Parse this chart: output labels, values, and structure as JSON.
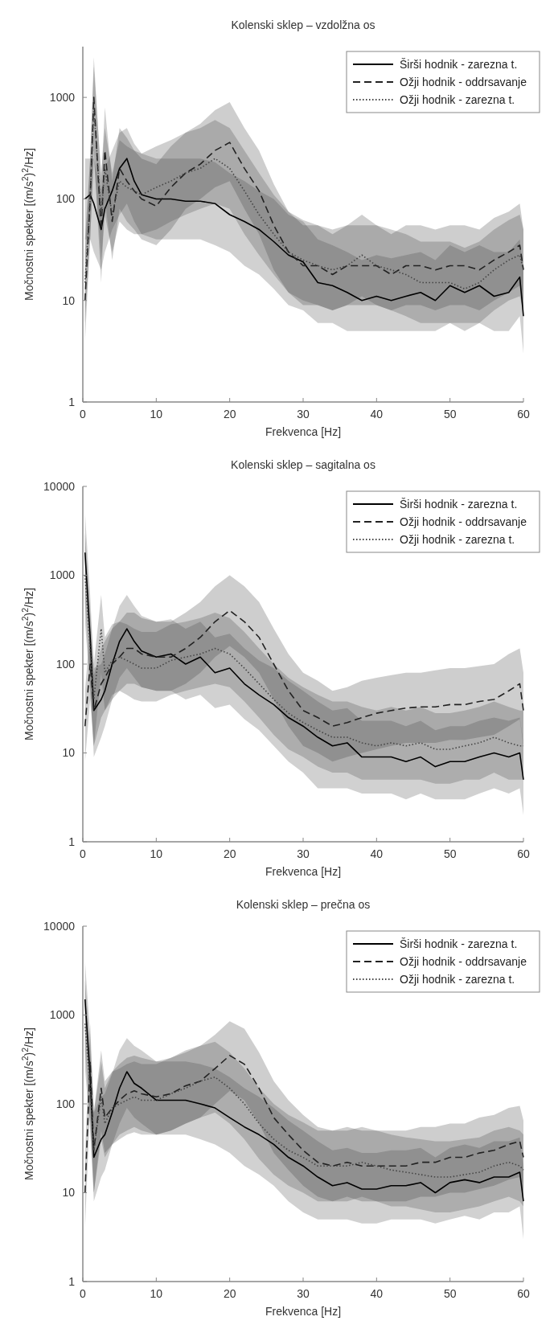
{
  "chart_data": [
    {
      "type": "line",
      "title": "Kolenski sklep – vzdolžna os",
      "xlabel": "Frekvenca [Hz]",
      "ylabel": "Močnostni spekter [(m/s$^{2}$)$^{2}$/Hz]",
      "log": "y",
      "legend": "top right",
      "xlim": [
        0,
        60
      ],
      "xticks": [
        0,
        10,
        20,
        30,
        40,
        50,
        60
      ],
      "ylim": [
        1,
        3162
      ],
      "yticks": [
        1,
        10,
        100,
        1000
      ],
      "x": [
        0.3,
        1,
        1.5,
        2.5,
        3,
        4,
        5,
        6,
        7,
        8,
        10,
        12,
        14,
        16,
        18,
        20,
        22,
        24,
        26,
        28,
        30,
        32,
        34,
        36,
        38,
        40,
        42,
        44,
        46,
        48,
        50,
        52,
        54,
        56,
        58,
        59.5,
        60
      ],
      "series": [
        {
          "name": "Širši hodnik - zarezna t.",
          "color": "#000000",
          "line_style": "solid",
          "values": [
            100,
            110,
            90,
            50,
            80,
            120,
            200,
            250,
            150,
            110,
            100,
            100,
            95,
            95,
            90,
            70,
            60,
            50,
            38,
            28,
            24,
            15,
            14,
            12,
            10,
            11,
            10,
            11,
            12,
            10,
            14,
            12,
            14,
            11,
            12,
            17,
            7
          ],
          "lower": [
            40,
            40,
            30,
            20,
            30,
            50,
            70,
            90,
            60,
            45,
            40,
            40,
            40,
            40,
            35,
            30,
            22,
            18,
            13,
            9,
            8,
            6,
            6,
            5,
            5,
            5,
            5,
            5,
            5,
            5,
            6,
            6,
            6,
            5,
            5,
            7,
            3
          ],
          "upper": [
            250,
            250,
            250,
            120,
            200,
            300,
            450,
            500,
            350,
            280,
            250,
            250,
            250,
            250,
            230,
            180,
            150,
            120,
            100,
            70,
            60,
            40,
            35,
            30,
            25,
            28,
            26,
            28,
            30,
            25,
            35,
            30,
            35,
            30,
            30,
            40,
            20
          ]
        },
        {
          "name": "Ožji hodnik - oddrsavanje",
          "color": "#222222",
          "line_style": "dashed",
          "values": [
            10,
            100,
            1000,
            50,
            300,
            60,
            200,
            150,
            120,
            100,
            85,
            130,
            180,
            220,
            300,
            360,
            200,
            120,
            55,
            30,
            22,
            22,
            18,
            22,
            22,
            22,
            18,
            22,
            22,
            20,
            22,
            22,
            20,
            25,
            30,
            35,
            20
          ],
          "lower": [
            4,
            40,
            300,
            15,
            100,
            25,
            80,
            60,
            50,
            40,
            35,
            50,
            80,
            100,
            130,
            150,
            80,
            45,
            20,
            12,
            9,
            9,
            8,
            9,
            9,
            9,
            8,
            9,
            9,
            8,
            9,
            9,
            8,
            10,
            12,
            14,
            8
          ],
          "upper": [
            30,
            250,
            2500,
            150,
            800,
            150,
            500,
            400,
            300,
            250,
            220,
            330,
            450,
            550,
            750,
            900,
            500,
            300,
            140,
            75,
            55,
            55,
            45,
            55,
            55,
            55,
            45,
            55,
            55,
            50,
            55,
            55,
            50,
            65,
            75,
            90,
            50
          ]
        },
        {
          "name": "Ožji hodnik - zarezna t.",
          "color": "#444444",
          "line_style": "dotted",
          "values": [
            15,
            100,
            800,
            70,
            200,
            70,
            150,
            130,
            120,
            110,
            130,
            150,
            180,
            200,
            250,
            200,
            120,
            70,
            45,
            30,
            25,
            22,
            20,
            22,
            28,
            22,
            20,
            18,
            15,
            15,
            15,
            13,
            15,
            20,
            25,
            28,
            20
          ],
          "lower": [
            6,
            40,
            250,
            25,
            70,
            30,
            60,
            50,
            45,
            45,
            50,
            60,
            70,
            80,
            90,
            80,
            45,
            28,
            18,
            12,
            10,
            9,
            8,
            9,
            11,
            9,
            8,
            7,
            6,
            6,
            6,
            5,
            6,
            8,
            10,
            11,
            8
          ],
          "upper": [
            40,
            250,
            2000,
            180,
            500,
            180,
            380,
            330,
            300,
            280,
            330,
            380,
            450,
            500,
            600,
            500,
            300,
            180,
            110,
            75,
            62,
            55,
            50,
            55,
            70,
            55,
            50,
            45,
            38,
            38,
            38,
            33,
            38,
            50,
            62,
            70,
            50
          ]
        }
      ]
    },
    {
      "type": "line",
      "title": "Kolenski sklep – sagitalna os",
      "xlabel": "Frekvenca [Hz]",
      "ylabel": "Močnostni spekter [(m/s$^{2}$)$^{2}$/Hz]",
      "log": "y",
      "legend": "top right",
      "xlim": [
        0,
        60
      ],
      "xticks": [
        0,
        10,
        20,
        30,
        40,
        50,
        60
      ],
      "ylim": [
        1,
        10000
      ],
      "yticks": [
        1,
        10,
        100,
        1000,
        10000
      ],
      "x": [
        0.3,
        1,
        1.5,
        2.5,
        3,
        4,
        5,
        6,
        7,
        8,
        10,
        12,
        14,
        16,
        18,
        20,
        22,
        24,
        26,
        28,
        30,
        32,
        34,
        36,
        38,
        40,
        42,
        44,
        46,
        48,
        50,
        52,
        54,
        56,
        58,
        59.5,
        60
      ],
      "series": [
        {
          "name": "Širši hodnik - zarezna t.",
          "color": "#000000",
          "line_style": "solid",
          "values": [
            1800,
            200,
            30,
            40,
            50,
            100,
            180,
            250,
            180,
            140,
            120,
            130,
            100,
            120,
            80,
            90,
            60,
            45,
            35,
            25,
            20,
            15,
            12,
            13,
            9,
            9,
            9,
            8,
            9,
            7,
            8,
            8,
            9,
            10,
            9,
            10,
            5
          ],
          "lower": [
            500,
            60,
            9,
            15,
            20,
            40,
            70,
            90,
            70,
            55,
            50,
            50,
            40,
            45,
            32,
            35,
            24,
            18,
            12,
            8,
            6,
            4,
            4,
            4,
            3.5,
            3.5,
            3.5,
            3,
            3.5,
            3,
            3,
            3,
            3.5,
            4,
            3.5,
            4,
            2
          ],
          "upper": [
            5000,
            600,
            90,
            100,
            130,
            250,
            450,
            600,
            450,
            350,
            300,
            320,
            250,
            300,
            200,
            220,
            150,
            110,
            90,
            65,
            50,
            38,
            30,
            32,
            23,
            23,
            23,
            20,
            23,
            18,
            20,
            20,
            23,
            25,
            23,
            25,
            13
          ]
        },
        {
          "name": "Ožji hodnik - oddrsavanje",
          "color": "#222222",
          "line_style": "dashed",
          "values": [
            20,
            100,
            30,
            60,
            70,
            100,
            120,
            150,
            150,
            130,
            120,
            120,
            150,
            200,
            300,
            400,
            300,
            200,
            100,
            50,
            30,
            25,
            20,
            22,
            25,
            28,
            30,
            32,
            33,
            33,
            35,
            35,
            38,
            40,
            50,
            60,
            30
          ],
          "lower": [
            8,
            40,
            12,
            25,
            30,
            40,
            50,
            60,
            60,
            55,
            50,
            50,
            60,
            80,
            120,
            160,
            120,
            80,
            40,
            20,
            12,
            10,
            8,
            9,
            10,
            11,
            12,
            13,
            13,
            13,
            14,
            14,
            15,
            16,
            20,
            24,
            12
          ],
          "upper": [
            50,
            250,
            75,
            150,
            180,
            250,
            300,
            380,
            380,
            330,
            300,
            300,
            380,
            500,
            750,
            1000,
            750,
            500,
            250,
            130,
            80,
            65,
            50,
            55,
            65,
            70,
            75,
            80,
            80,
            85,
            90,
            90,
            95,
            100,
            130,
            150,
            80
          ]
        },
        {
          "name": "Ožji hodnik - zarezna t.",
          "color": "#444444",
          "line_style": "dotted",
          "values": [
            1000,
            150,
            40,
            250,
            80,
            110,
            120,
            110,
            100,
            90,
            90,
            110,
            120,
            130,
            150,
            130,
            90,
            60,
            40,
            28,
            22,
            18,
            15,
            15,
            13,
            12,
            13,
            12,
            13,
            11,
            11,
            12,
            13,
            15,
            13,
            12,
            12
          ],
          "lower": [
            300,
            50,
            12,
            80,
            30,
            45,
            50,
            45,
            40,
            38,
            38,
            45,
            50,
            55,
            60,
            55,
            38,
            25,
            16,
            11,
            9,
            7,
            6,
            6,
            5,
            5,
            5,
            5,
            5,
            4.5,
            4.5,
            5,
            5,
            6,
            5,
            5,
            5
          ],
          "upper": [
            3000,
            400,
            100,
            600,
            200,
            280,
            300,
            280,
            250,
            230,
            230,
            280,
            300,
            330,
            380,
            330,
            230,
            150,
            100,
            70,
            55,
            45,
            38,
            38,
            33,
            30,
            33,
            30,
            33,
            28,
            28,
            30,
            33,
            38,
            33,
            30,
            30
          ]
        }
      ]
    },
    {
      "type": "line",
      "title": "Kolenski sklep – prečna os",
      "xlabel": "Frekvenca [Hz]",
      "ylabel": "Močnostni spekter [(m/s$^{2}$)$^{2}$/Hz]",
      "log": "y",
      "legend": "top right",
      "xlim": [
        0,
        60
      ],
      "xticks": [
        0,
        10,
        20,
        30,
        40,
        50,
        60
      ],
      "ylim": [
        1,
        10000
      ],
      "yticks": [
        1,
        10,
        100,
        1000,
        10000
      ],
      "x": [
        0.3,
        1,
        1.5,
        2.5,
        3,
        4,
        5,
        6,
        7,
        8,
        10,
        12,
        14,
        16,
        18,
        20,
        22,
        24,
        26,
        28,
        30,
        32,
        34,
        36,
        38,
        40,
        42,
        44,
        46,
        48,
        50,
        52,
        54,
        56,
        58,
        59.5,
        60
      ],
      "series": [
        {
          "name": "Širši hodnik - zarezna t.",
          "color": "#000000",
          "line_style": "solid",
          "values": [
            1500,
            200,
            25,
            40,
            45,
            80,
            150,
            230,
            170,
            150,
            110,
            110,
            110,
            100,
            90,
            70,
            55,
            45,
            35,
            25,
            20,
            15,
            12,
            13,
            11,
            11,
            12,
            12,
            13,
            10,
            13,
            14,
            13,
            15,
            15,
            17,
            8
          ],
          "lower": [
            400,
            60,
            8,
            15,
            18,
            35,
            60,
            90,
            70,
            60,
            45,
            45,
            45,
            40,
            35,
            28,
            20,
            16,
            12,
            8,
            6,
            5,
            5,
            5,
            4.5,
            4.5,
            5,
            5,
            5,
            4.5,
            5,
            5.5,
            5,
            6,
            6,
            7,
            3
          ],
          "upper": [
            4000,
            600,
            80,
            120,
            130,
            220,
            400,
            550,
            450,
            400,
            300,
            300,
            300,
            280,
            250,
            200,
            150,
            120,
            90,
            65,
            50,
            38,
            30,
            32,
            28,
            28,
            30,
            30,
            32,
            25,
            32,
            35,
            32,
            38,
            38,
            42,
            20
          ]
        },
        {
          "name": "Ožji hodnik - oddrsavanje",
          "color": "#222222",
          "line_style": "dashed",
          "values": [
            10,
            300,
            30,
            150,
            70,
            90,
            110,
            130,
            140,
            130,
            120,
            130,
            160,
            180,
            250,
            350,
            280,
            150,
            70,
            45,
            30,
            22,
            20,
            22,
            20,
            20,
            20,
            20,
            22,
            22,
            25,
            25,
            28,
            30,
            35,
            38,
            25
          ],
          "lower": [
            4,
            100,
            10,
            50,
            28,
            35,
            45,
            50,
            55,
            50,
            45,
            50,
            60,
            70,
            100,
            140,
            110,
            60,
            28,
            18,
            12,
            9,
            8,
            9,
            8,
            8,
            8,
            8,
            9,
            9,
            10,
            10,
            11,
            12,
            14,
            15,
            10
          ],
          "upper": [
            25,
            800,
            80,
            400,
            180,
            230,
            280,
            330,
            350,
            330,
            300,
            330,
            400,
            450,
            600,
            850,
            700,
            380,
            180,
            110,
            75,
            55,
            50,
            55,
            50,
            50,
            50,
            50,
            55,
            55,
            60,
            60,
            70,
            75,
            90,
            95,
            65
          ]
        },
        {
          "name": "Ožji hodnik - zarezna t.",
          "color": "#444444",
          "line_style": "dotted",
          "values": [
            800,
            150,
            30,
            120,
            60,
            90,
            100,
            110,
            120,
            110,
            110,
            130,
            150,
            180,
            200,
            150,
            100,
            60,
            40,
            30,
            25,
            20,
            20,
            20,
            22,
            20,
            18,
            17,
            16,
            15,
            15,
            16,
            17,
            20,
            22,
            20,
            18
          ],
          "lower": [
            250,
            50,
            10,
            40,
            25,
            35,
            40,
            45,
            48,
            45,
            45,
            50,
            60,
            70,
            80,
            60,
            40,
            24,
            16,
            12,
            10,
            8,
            8,
            8,
            9,
            8,
            7,
            7,
            6.5,
            6,
            6,
            6.5,
            7,
            8,
            9,
            8,
            7
          ],
          "upper": [
            2500,
            400,
            80,
            300,
            150,
            230,
            250,
            280,
            300,
            280,
            280,
            330,
            380,
            450,
            500,
            380,
            250,
            150,
            100,
            75,
            62,
            50,
            50,
            50,
            55,
            50,
            45,
            42,
            40,
            38,
            38,
            40,
            42,
            50,
            55,
            50,
            45
          ]
        }
      ]
    }
  ]
}
